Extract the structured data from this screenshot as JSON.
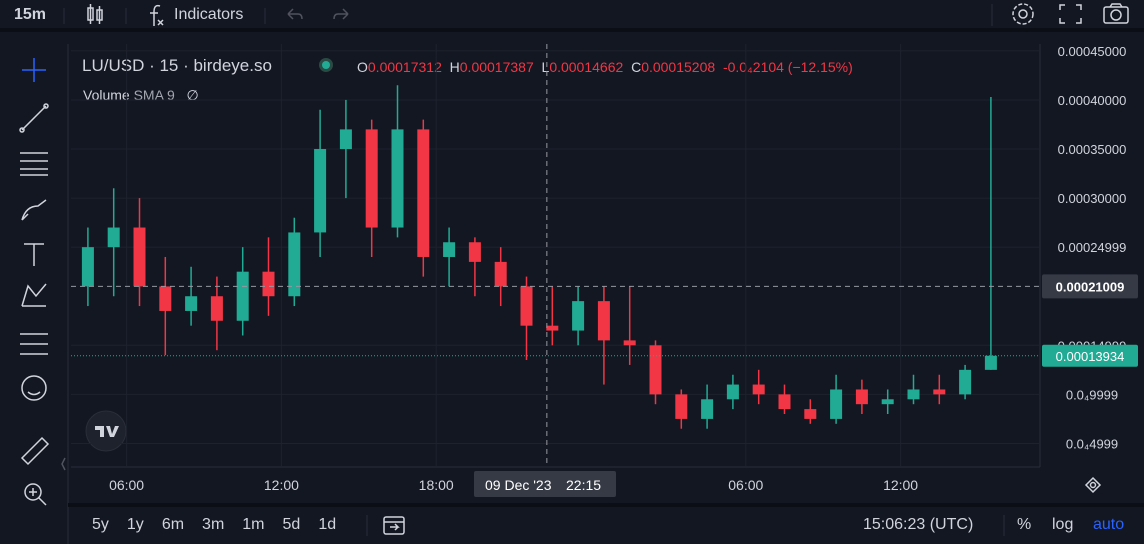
{
  "top_toolbar": {
    "interval": "15m",
    "indicators": "Indicators"
  },
  "legend": {
    "symbol": "LU/USD · 15 · birdeye.so",
    "open_label": "O",
    "open": "0.00017312",
    "high_label": "H",
    "high": "0.00017387",
    "low_label": "L",
    "low": "0.00014662",
    "close_label": "C",
    "close": "0.00015208",
    "change": "-0.0₄2104 (−12.15%)",
    "volume": "Volume",
    "volume_sma": "SMA 9",
    "volume_value": "∅"
  },
  "chart_data": {
    "type": "candlestick",
    "categories": [
      null,
      null,
      "06:00",
      null,
      null,
      null,
      null,
      null,
      "12:00",
      null,
      null,
      null,
      null,
      null,
      "18:00",
      null,
      null,
      null,
      null,
      null,
      null,
      null,
      null,
      null,
      null,
      null,
      "06:00",
      null,
      null,
      null,
      null,
      null,
      "12:00",
      null,
      null,
      null
    ],
    "open": [
      0.00021,
      0.00025,
      0.00027,
      0.00021,
      0.000185,
      0.0002,
      0.000175,
      0.000225,
      0.0002,
      0.000265,
      0.00035,
      0.00037,
      0.00027,
      0.00037,
      0.00024,
      0.000255,
      0.000235,
      0.00021,
      0.00017,
      0.000165,
      0.000195,
      0.000155,
      0.00015,
      0.0001,
      7.5e-05,
      9.5e-05,
      0.00011,
      0.0001,
      8.5e-05,
      7.5e-05,
      0.000105,
      9e-05,
      9.5e-05,
      0.000105,
      0.0001,
      0.000125
    ],
    "high": [
      0.00027,
      0.00031,
      0.0003,
      0.00024,
      0.00023,
      0.00022,
      0.00025,
      0.00026,
      0.00028,
      0.00039,
      0.0004,
      0.00038,
      0.000415,
      0.00038,
      0.00027,
      0.00026,
      0.00025,
      0.00022,
      0.00021,
      0.00021,
      0.00021,
      0.00021,
      0.000155,
      0.000105,
      0.00011,
      0.00012,
      0.000125,
      0.00011,
      9.5e-05,
      0.00012,
      0.000115,
      0.000105,
      0.00012,
      0.00012,
      0.00013,
      0.000403
    ],
    "low": [
      0.00019,
      0.0002,
      0.00019,
      0.00014,
      0.00017,
      0.000145,
      0.00016,
      0.00018,
      0.00019,
      0.00024,
      0.0003,
      0.00024,
      0.00026,
      0.00022,
      0.00021,
      0.0002,
      0.00019,
      0.000135,
      0.00015,
      0.00015,
      0.00011,
      0.00013,
      9e-05,
      6.5e-05,
      6.5e-05,
      8.5e-05,
      9e-05,
      8e-05,
      7e-05,
      7e-05,
      8e-05,
      8e-05,
      9e-05,
      9e-05,
      9.5e-05,
      0.000125
    ],
    "close": [
      0.00025,
      0.00027,
      0.00021,
      0.000185,
      0.0002,
      0.000175,
      0.000225,
      0.0002,
      0.000265,
      0.00035,
      0.00037,
      0.00027,
      0.00037,
      0.00024,
      0.000255,
      0.000235,
      0.00021,
      0.00017,
      0.000165,
      0.000195,
      0.000155,
      0.00015,
      0.0001,
      7.5e-05,
      9.5e-05,
      0.00011,
      0.0001,
      8.5e-05,
      7.5e-05,
      0.000105,
      9e-05,
      9.5e-05,
      0.000105,
      0.0001,
      0.000125,
      0.00013934
    ],
    "up_color": "#22ab94",
    "down_color": "#f23645",
    "ylim": [
      2.6e-05,
      0.000457
    ],
    "yticks": [
      {
        "value": 0.00045,
        "label": "0.00045000"
      },
      {
        "value": 0.0004,
        "label": "0.00040000"
      },
      {
        "value": 0.00035,
        "label": "0.00035000"
      },
      {
        "value": 0.0003,
        "label": "0.00030000"
      },
      {
        "value": 0.00024999,
        "label": "0.00024999"
      },
      {
        "value": 0.00014999,
        "label": "0.00014999"
      },
      {
        "value": 9.999e-05,
        "label": "0.0₄9999"
      },
      {
        "value": 4.999e-05,
        "label": "0.0₄4999"
      }
    ],
    "grid": true,
    "crosshair": {
      "date": "09 Dec '23",
      "time": "22:15",
      "price": {
        "value": 0.00021009,
        "label": "0.00021009"
      }
    },
    "last_price": {
      "value": 0.00013934,
      "label": "0.00013934"
    }
  },
  "bottom_toolbar": {
    "ranges": [
      "5y",
      "1y",
      "6m",
      "3m",
      "1m",
      "5d",
      "1d"
    ],
    "clock": "15:06:23 (UTC)",
    "percent": "%",
    "log": "log",
    "auto": "auto"
  }
}
